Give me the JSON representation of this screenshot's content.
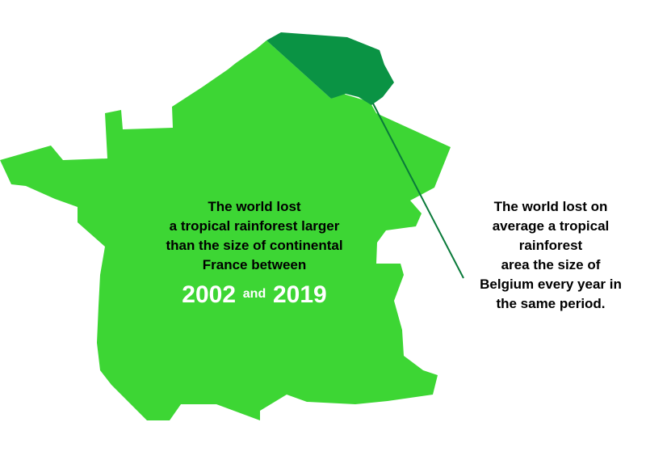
{
  "colors": {
    "france": "#3dd634",
    "belgium": "#0a9344",
    "leader_line": "#0a7a3a",
    "text": "#000000",
    "years_text": "#ffffff"
  },
  "france_label": {
    "lines": [
      "The world lost",
      "a tropical rainforest larger",
      "than the size of continental",
      "France between"
    ],
    "year_start": "2002",
    "conjunction": "and",
    "year_end": "2019"
  },
  "belgium_label": {
    "lines": [
      "The world lost on",
      "average a tropical",
      "rainforest",
      "area the size of",
      "Belgium every year in",
      "the same period."
    ]
  }
}
